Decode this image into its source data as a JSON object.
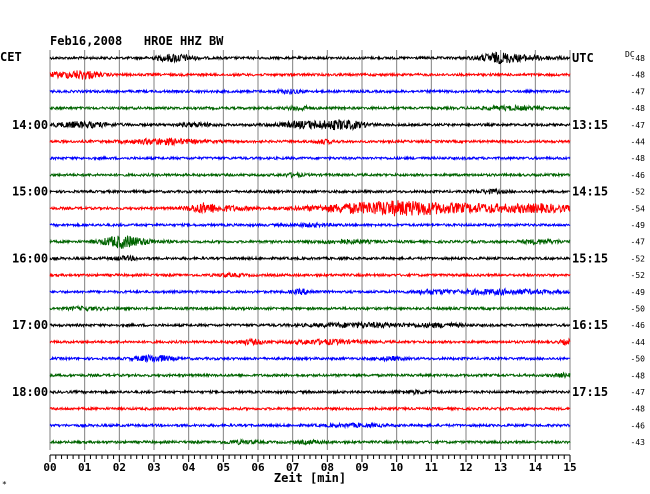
{
  "chart_data": {
    "type": "line",
    "title": "Feb16,2008   HROE HHZ BW",
    "left_axis_label": "CET",
    "right_axis_label": "UTC",
    "dc_label": "DC",
    "xlabel": "Zeit [min]",
    "x_ticks": [
      "00",
      "01",
      "02",
      "03",
      "04",
      "05",
      "06",
      "07",
      "08",
      "09",
      "10",
      "11",
      "12",
      "13",
      "14",
      "15"
    ],
    "xlim": [
      0,
      15
    ],
    "left_hour_labels": [
      {
        "row": 4,
        "text": "14:00"
      },
      {
        "row": 8,
        "text": "15:00"
      },
      {
        "row": 12,
        "text": "16:00"
      },
      {
        "row": 16,
        "text": "17:00"
      },
      {
        "row": 20,
        "text": "18:00"
      }
    ],
    "right_hour_labels": [
      {
        "row": 0,
        "text": "UTC"
      },
      {
        "row": 4,
        "text": "13:15"
      },
      {
        "row": 8,
        "text": "14:15"
      },
      {
        "row": 12,
        "text": "15:15"
      },
      {
        "row": 16,
        "text": "16:15"
      },
      {
        "row": 20,
        "text": "17:15"
      }
    ],
    "trace_colors": [
      "#000000",
      "#ff0000",
      "#0000ff",
      "#006400"
    ],
    "dc_offsets": [
      -48,
      -48,
      -47,
      -48,
      -47,
      -44,
      -48,
      -46,
      -52,
      -54,
      -49,
      -47,
      -52,
      -52,
      -49,
      -50,
      -46,
      -44,
      -50,
      -48,
      -47,
      -48,
      -46,
      -43
    ],
    "bursts": [
      [
        [
          3.6,
          0.5,
          3.5
        ],
        [
          12.9,
          0.5,
          3.5
        ],
        [
          13.6,
          1.0,
          2
        ]
      ],
      [
        [
          0.6,
          0.8,
          2.5
        ],
        [
          1.0,
          0.3,
          2
        ]
      ],
      [
        [
          6.9,
          0.4,
          1.5
        ]
      ],
      [
        [
          7.2,
          0.3,
          1.8
        ],
        [
          13.3,
          0.8,
          1.5
        ]
      ],
      [
        [
          0.9,
          0.8,
          2.5
        ],
        [
          7.4,
          0.8,
          3
        ],
        [
          8.5,
          0.6,
          3.8
        ],
        [
          4.2,
          0.5,
          1.5
        ]
      ],
      [
        [
          3.3,
          1.0,
          2.5
        ],
        [
          7.9,
          0.3,
          1.5
        ]
      ],
      [],
      [
        [
          7.0,
          0.3,
          1.2
        ]
      ],
      [
        [
          12.7,
          0.4,
          1.5
        ]
      ],
      [
        [
          4.4,
          0.4,
          3.5
        ],
        [
          5.0,
          0.8,
          2
        ],
        [
          9.0,
          1.6,
          4
        ],
        [
          10.4,
          1.2,
          4.5
        ],
        [
          12.5,
          1.4,
          3.5
        ],
        [
          14.3,
          0.9,
          3
        ]
      ],
      [
        [
          7.5,
          0.6,
          1.2
        ]
      ],
      [
        [
          2.0,
          0.5,
          4.5
        ],
        [
          2.5,
          0.7,
          2
        ],
        [
          8.5,
          0.8,
          1.5
        ],
        [
          14.2,
          0.6,
          1.8
        ]
      ],
      [
        [
          2.2,
          0.4,
          1.5
        ]
      ],
      [
        [
          5.2,
          0.4,
          1.2
        ]
      ],
      [
        [
          7.3,
          0.3,
          2
        ],
        [
          13.0,
          1.5,
          2
        ],
        [
          11.0,
          0.5,
          1.5
        ]
      ],
      [
        [
          1.0,
          0.5,
          1.2
        ]
      ],
      [
        [
          9.0,
          1.5,
          1.8
        ],
        [
          11.3,
          0.6,
          1.5
        ]
      ],
      [
        [
          5.8,
          0.4,
          2
        ],
        [
          7.9,
          0.9,
          2
        ],
        [
          14.9,
          0.2,
          2
        ]
      ],
      [
        [
          3.0,
          0.5,
          3
        ],
        [
          9.8,
          0.4,
          1.5
        ]
      ],
      [
        [
          14.8,
          0.3,
          1.3
        ]
      ],
      [
        [
          10.5,
          0.5,
          1.3
        ]
      ],
      [],
      [
        [
          8.8,
          0.8,
          1.2
        ]
      ],
      [
        [
          5.5,
          0.5,
          1.3
        ],
        [
          7.5,
          0.4,
          1.2
        ]
      ]
    ]
  }
}
